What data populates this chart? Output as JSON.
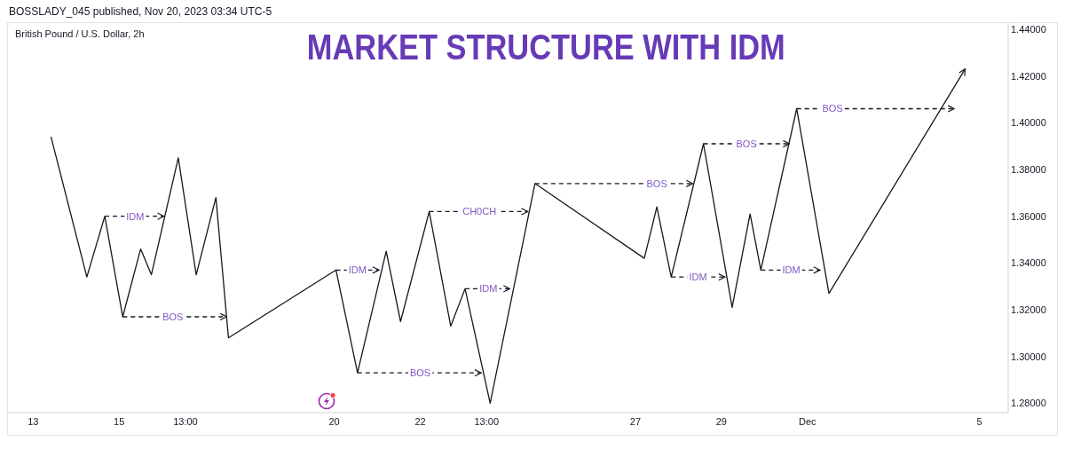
{
  "chart_data": {
    "type": "line",
    "title": "MARKET STRUCTURE WITH IDM",
    "subtitle": "British Pound / U.S. Dollar, 2h",
    "annotations": [
      "BOSSLADY_045 published, Nov 20, 2023 03:34 UTC-5",
      {
        "text": "IDM",
        "x": "2023-11-15T09:00",
        "y": 1.36
      },
      {
        "text": "BOS",
        "x": "2023-11-16T06:00",
        "y": 1.317
      },
      {
        "text": "IDM",
        "x": "2023-11-20T13:00",
        "y": 1.337
      },
      {
        "text": "BOS",
        "x": "2023-11-22T00:00",
        "y": 1.293
      },
      {
        "text": "CH0CH",
        "x": "2023-11-23T09:00",
        "y": 1.362
      },
      {
        "text": "IDM",
        "x": "2023-11-23T14:00",
        "y": 1.329
      },
      {
        "text": "BOS",
        "x": "2023-11-27T12:00",
        "y": 1.374
      },
      {
        "text": "IDM",
        "x": "2023-11-28T11:00",
        "y": 1.334
      },
      {
        "text": "BOS",
        "x": "2023-11-29T14:00",
        "y": 1.391
      },
      {
        "text": "IDM",
        "x": "2023-11-30T15:00",
        "y": 1.337
      },
      {
        "text": "BOS",
        "x": "2023-12-01T14:00",
        "y": 1.406
      }
    ],
    "xlim": [
      "2023-11-12T10:00",
      "2023-12-05T16:00"
    ],
    "xticks": [
      {
        "value": "2023-11-13",
        "label": "13"
      },
      {
        "value": "2023-11-15",
        "label": "15"
      },
      {
        "value": "2023-11-16T13:00",
        "label": "13:00"
      },
      {
        "value": "2023-11-20",
        "label": "20"
      },
      {
        "value": "2023-11-22",
        "label": "22"
      },
      {
        "value": "2023-11-23T13:00",
        "label": "13:00"
      },
      {
        "value": "2023-11-27",
        "label": "27"
      },
      {
        "value": "2023-11-29",
        "label": "29"
      },
      {
        "value": "2023-12-01",
        "label": "Dec"
      },
      {
        "value": "2023-12-05",
        "label": "5"
      }
    ],
    "ylim": [
      1.276,
      1.443
    ],
    "yticks": [
      {
        "value": 1.28,
        "label": "1.28000"
      },
      {
        "value": 1.3,
        "label": "1.30000"
      },
      {
        "value": 1.32,
        "label": "1.32000"
      },
      {
        "value": 1.34,
        "label": "1.34000"
      },
      {
        "value": 1.36,
        "label": "1.36000"
      },
      {
        "value": 1.38,
        "label": "1.38000"
      },
      {
        "value": 1.4,
        "label": "1.40000"
      },
      {
        "value": 1.42,
        "label": "1.42000"
      },
      {
        "value": 1.44,
        "label": "1.44000"
      }
    ],
    "marker": "none",
    "series": [
      {
        "color": "#131722",
        "line_style": "solid",
        "x": [
          "2023-11-13T10:00",
          "2023-11-14T06:00",
          "2023-11-14T16:00",
          "2023-11-15T02:00",
          "2023-11-15T12:00",
          "2023-11-15T18:00",
          "2023-11-16T09:00",
          "2023-11-16T19:00",
          "2023-11-17T06:00",
          "2023-11-17T13:00",
          "2023-11-20T01:00",
          "2023-11-20T13:00",
          "2023-11-21T05:00",
          "2023-11-21T13:00",
          "2023-11-22T05:00",
          "2023-11-22T17:00",
          "2023-11-23T01:00",
          "2023-11-23T15:00",
          "2023-11-24T16:00",
          "2023-11-27T05:00",
          "2023-11-27T12:00",
          "2023-11-27T20:00",
          "2023-11-28T14:00",
          "2023-11-29T06:00",
          "2023-11-29T16:00",
          "2023-11-29T22:00",
          "2023-11-30T18:00",
          "2023-12-01T12:00",
          "2023-12-04T16:00"
        ],
        "values": [
          1.394,
          1.334,
          1.36,
          1.317,
          1.346,
          1.335,
          1.385,
          1.335,
          1.368,
          1.308,
          1.337,
          1.293,
          1.345,
          1.315,
          1.362,
          1.313,
          1.329,
          1.28,
          1.374,
          1.342,
          1.364,
          1.334,
          1.391,
          1.321,
          1.361,
          1.337,
          1.406,
          1.327,
          1.423
        ]
      },
      {
        "color": "#131722",
        "line_style": "dashed",
        "x": [
          "2023-11-14T16:00",
          "2023-11-16T01:00"
        ],
        "values": [
          1.36,
          1.36
        ]
      },
      {
        "color": "#131722",
        "line_style": "dashed",
        "x": [
          "2023-11-15T02:00",
          "2023-11-17T12:00"
        ],
        "values": [
          1.317,
          1.317
        ]
      },
      {
        "color": "#131722",
        "line_style": "dashed",
        "x": [
          "2023-11-20T01:00",
          "2023-11-21T01:00"
        ],
        "values": [
          1.337,
          1.337
        ]
      },
      {
        "color": "#131722",
        "line_style": "dashed",
        "x": [
          "2023-11-20T13:00",
          "2023-11-23T10:00"
        ],
        "values": [
          1.293,
          1.293
        ]
      },
      {
        "color": "#131722",
        "line_style": "dashed",
        "x": [
          "2023-11-22T05:00",
          "2023-11-24T12:00"
        ],
        "values": [
          1.362,
          1.362
        ]
      },
      {
        "color": "#131722",
        "line_style": "dashed",
        "x": [
          "2023-11-23T01:00",
          "2023-11-24T02:00"
        ],
        "values": [
          1.329,
          1.329
        ]
      },
      {
        "color": "#131722",
        "line_style": "dashed",
        "x": [
          "2023-11-24T16:00",
          "2023-11-28T08:00"
        ],
        "values": [
          1.374,
          1.374
        ]
      },
      {
        "color": "#131722",
        "line_style": "dashed",
        "x": [
          "2023-11-27T20:00",
          "2023-11-29T02:00"
        ],
        "values": [
          1.334,
          1.334
        ]
      },
      {
        "color": "#131722",
        "line_style": "dashed",
        "x": [
          "2023-11-28T14:00",
          "2023-11-30T14:00"
        ],
        "values": [
          1.391,
          1.391
        ]
      },
      {
        "color": "#131722",
        "line_style": "dashed",
        "x": [
          "2023-11-29T22:00",
          "2023-12-01T07:00"
        ],
        "values": [
          1.337,
          1.337
        ]
      },
      {
        "color": "#131722",
        "line_style": "dashed",
        "x": [
          "2023-11-30T18:00",
          "2023-12-04T10:00"
        ],
        "values": [
          1.406,
          1.406
        ]
      }
    ]
  }
}
